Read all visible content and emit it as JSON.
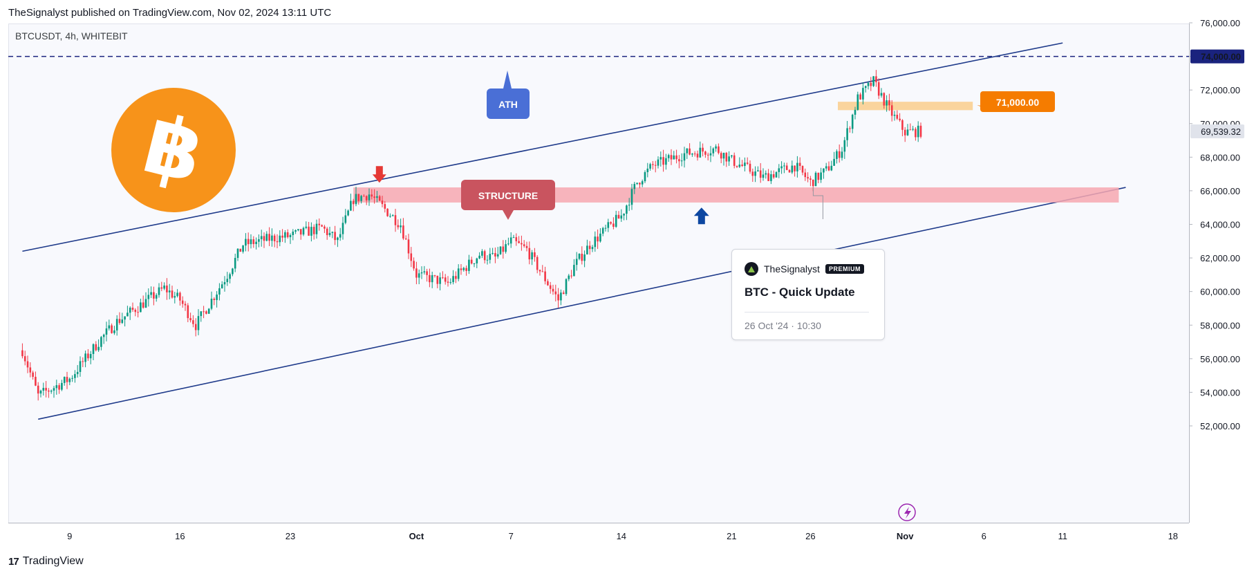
{
  "header": {
    "publisher_line": "TheSignalyst published on TradingView.com, Nov 02, 2024 13:11 UTC"
  },
  "symbol_line": "BTCUSDT, 4h, WHITEBIT",
  "footer": {
    "logo_glyph": "17",
    "brand": "TradingView"
  },
  "colors": {
    "up": "#089981",
    "down": "#f23645",
    "channel": "#1e3a8a",
    "structure_zone": "#f7a8b0",
    "resistance_zone": "#f9cf92",
    "ath_label": "#4a6fd6",
    "structure_label": "#c9545f",
    "price_label": "#f57c00",
    "bitcoin": "#f7931a"
  },
  "annotations": {
    "ath_label": "ATH",
    "structure_label": "STRUCTURE",
    "resistance_label": "71,000.00",
    "idea_card": {
      "author": "TheSignalyst",
      "badge": "PREMIUM",
      "title": "BTC - Quick Update",
      "date": "26 Oct '24 · 10:30"
    }
  },
  "chart_data": {
    "type": "candlestick",
    "symbol": "BTCUSDT",
    "interval": "4h",
    "exchange": "WHITEBIT",
    "y_axis": {
      "min": 51000,
      "max": 76000,
      "ticks": [
        "76,000.00",
        "74,000.00",
        "72,000.00",
        "70,000.00",
        "68,000.00",
        "66,000.00",
        "64,000.00",
        "62,000.00",
        "60,000.00",
        "58,000.00",
        "56,000.00",
        "54,000.00",
        "52,000.00"
      ]
    },
    "x_axis": {
      "ticks": [
        "9",
        "16",
        "23",
        "Oct",
        "7",
        "14",
        "21",
        "26",
        "Nov",
        "6",
        "11",
        "18"
      ]
    },
    "price_labels": {
      "ath_level": "74,000.00",
      "last_price": "69,539.32"
    },
    "levels": {
      "ath": 74000,
      "last": 69539.32,
      "resistance": 71000,
      "structure_zone": [
        65300,
        66200
      ],
      "resistance_zone": [
        70800,
        71300
      ]
    },
    "price_path": [
      {
        "date": "2024-09-06",
        "price": 56500
      },
      {
        "date": "2024-09-07",
        "price": 53800
      },
      {
        "date": "2024-09-09",
        "price": 54800
      },
      {
        "date": "2024-09-11",
        "price": 57200
      },
      {
        "date": "2024-09-12",
        "price": 58200
      },
      {
        "date": "2024-09-15",
        "price": 60200
      },
      {
        "date": "2024-09-16",
        "price": 59500
      },
      {
        "date": "2024-09-17",
        "price": 58000
      },
      {
        "date": "2024-09-19",
        "price": 61000
      },
      {
        "date": "2024-09-20",
        "price": 62800
      },
      {
        "date": "2024-09-22",
        "price": 63200
      },
      {
        "date": "2024-09-23",
        "price": 63300
      },
      {
        "date": "2024-09-25",
        "price": 63800
      },
      {
        "date": "2024-09-26",
        "price": 63000
      },
      {
        "date": "2024-09-27",
        "price": 65500
      },
      {
        "date": "2024-09-28",
        "price": 65800
      },
      {
        "date": "2024-09-30",
        "price": 64000
      },
      {
        "date": "2024-10-01",
        "price": 61000
      },
      {
        "date": "2024-10-03",
        "price": 60500
      },
      {
        "date": "2024-10-05",
        "price": 62200
      },
      {
        "date": "2024-10-06",
        "price": 62000
      },
      {
        "date": "2024-10-07",
        "price": 63000
      },
      {
        "date": "2024-10-08",
        "price": 62500
      },
      {
        "date": "2024-10-10",
        "price": 59500
      },
      {
        "date": "2024-10-11",
        "price": 61500
      },
      {
        "date": "2024-10-12",
        "price": 62800
      },
      {
        "date": "2024-10-14",
        "price": 64500
      },
      {
        "date": "2024-10-15",
        "price": 66500
      },
      {
        "date": "2024-10-16",
        "price": 67500
      },
      {
        "date": "2024-10-18",
        "price": 68200
      },
      {
        "date": "2024-10-20",
        "price": 68500
      },
      {
        "date": "2024-10-21",
        "price": 67800
      },
      {
        "date": "2024-10-23",
        "price": 66800
      },
      {
        "date": "2024-10-25",
        "price": 67500
      },
      {
        "date": "2024-10-26",
        "price": 66500
      },
      {
        "date": "2024-10-27",
        "price": 67200
      },
      {
        "date": "2024-10-28",
        "price": 68500
      },
      {
        "date": "2024-10-29",
        "price": 71500
      },
      {
        "date": "2024-10-30",
        "price": 72500
      },
      {
        "date": "2024-10-31",
        "price": 70800
      },
      {
        "date": "2024-11-01",
        "price": 69500
      },
      {
        "date": "2024-11-02",
        "price": 69539.32
      }
    ],
    "channel": {
      "upper": [
        {
          "date": "2024-09-06",
          "price": 62400
        },
        {
          "date": "2024-11-11",
          "price": 74800
        }
      ],
      "lower": [
        {
          "date": "2024-09-07",
          "price": 52400
        },
        {
          "date": "2024-11-15",
          "price": 66200
        }
      ]
    },
    "grid": false
  }
}
